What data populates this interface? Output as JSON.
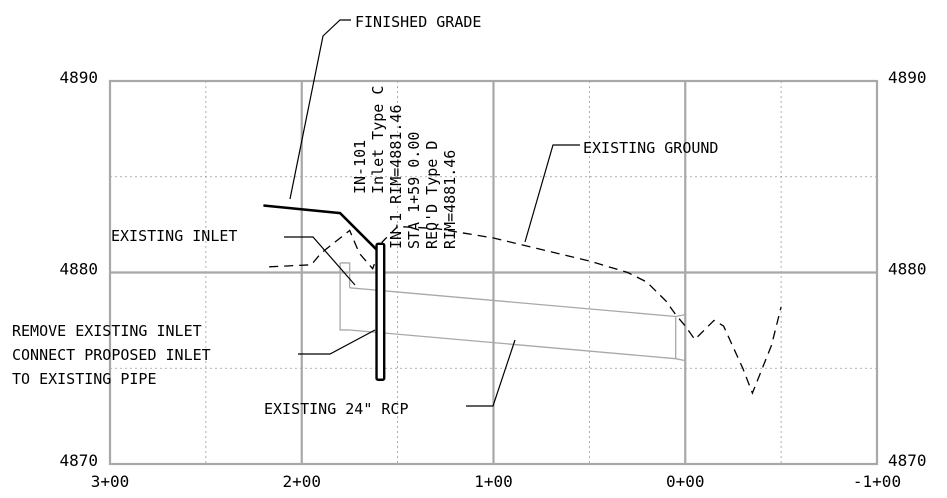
{
  "chart_data": {
    "type": "line",
    "x_tick_labels": [
      "3+00",
      "2+00",
      "1+00",
      "0+00",
      "-1+00"
    ],
    "y_tick_labels_left": [
      "4890",
      "4880",
      "4870"
    ],
    "y_tick_labels_right": [
      "4890",
      "4880",
      "4870"
    ],
    "xlim": [
      300,
      -100
    ],
    "ylim": [
      4870,
      4890
    ],
    "grid": "on",
    "series": [
      {
        "name": "FINISHED GRADE",
        "x": [
          220,
          180,
          160
        ],
        "y": [
          4883.5,
          4883.1,
          4881.1
        ]
      },
      {
        "name": "EXISTING GROUND",
        "x": [
          217,
          195,
          190,
          175,
          170,
          163,
          158,
          150,
          130,
          100,
          75,
          50,
          30,
          20,
          10,
          5,
          0,
          -5,
          -15,
          -20,
          -30,
          -35,
          -45,
          -50
        ],
        "y": [
          4880.3,
          4880.4,
          4881,
          4882.2,
          4881,
          4880.2,
          4881.6,
          4882.4,
          4882.3,
          4881.8,
          4881.2,
          4880.6,
          4880,
          4879.5,
          4878.5,
          4877.8,
          4877.2,
          4876.5,
          4877.5,
          4877.2,
          4875,
          4873.7,
          4876.2,
          4878.2
        ]
      },
      {
        "name": "EXISTING 24\" RCP",
        "top_x": [
          175,
          5,
          0
        ],
        "top_y": [
          4879.2,
          4877.7,
          4877.8
        ],
        "bottom_x": [
          175,
          5,
          0
        ],
        "bottom_y": [
          4877,
          4875.5,
          4875.4
        ]
      }
    ],
    "structures": [
      {
        "name": "EXISTING INLET",
        "x": [
          180,
          175
        ],
        "y_top": 4880.5,
        "y_bottom": 4877
      },
      {
        "name": "PROPOSED INLET",
        "x": [
          161,
          157
        ],
        "y_top": 4881.5,
        "y_bottom": 4874.4
      }
    ],
    "inlet_label_lines": [
      "IN-101",
      "Inlet Type C",
      "IN-1 RIM=4881.46",
      "STA 1+59 0.00",
      "REQ'D Type D",
      "RIM=4881.46"
    ],
    "annotations": {
      "finished_grade": "FINISHED GRADE",
      "existing_ground": "EXISTING GROUND",
      "existing_inlet": "EXISTING INLET",
      "remove_line_1": "REMOVE EXISTING INLET",
      "remove_line_2": "CONNECT PROPOSED INLET",
      "remove_line_3": "TO EXISTING PIPE",
      "existing_rcp": "EXISTING 24\" RCP"
    }
  }
}
